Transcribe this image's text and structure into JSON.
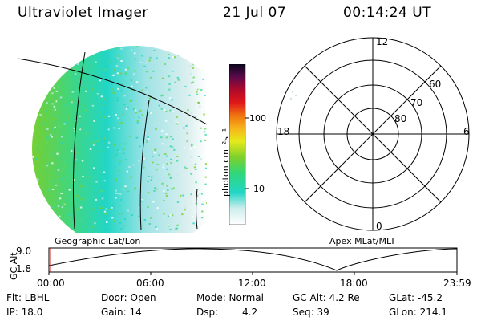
{
  "header": {
    "title": "Ultraviolet Imager",
    "date": "21 Jul 07",
    "time": "00:14:24 UT"
  },
  "colorbar": {
    "label": "photon cm⁻²s⁻¹",
    "ticks": [
      "100",
      "10"
    ]
  },
  "polar_plot": {
    "mlt_labels": [
      "12",
      "18",
      "6",
      "0"
    ],
    "lat_labels": [
      "60",
      "70",
      "80"
    ]
  },
  "projection_labels": {
    "left": "Geographic Lat/Lon",
    "right": "Apex MLat/MLT"
  },
  "altitude_plot": {
    "ylabel": "GC Alt",
    "yticks": [
      "9.0",
      "1.8"
    ],
    "xticks": [
      "00:00",
      "06:00",
      "12:00",
      "18:00",
      "23:59"
    ]
  },
  "status": {
    "filter": "Flt: LBHL",
    "ip": "IP: 18.0",
    "door": "Door: Open",
    "gain": "Gain: 14",
    "mode": "Mode: Normal",
    "dsp_label": "Dsp:",
    "dsp_value": "4.2",
    "gc_alt": "GC Alt: 4.2 Re",
    "seq": "Seq: 39",
    "glat": "GLat: -45.2",
    "glon": "GLon: 214.1"
  },
  "colors": {
    "intensity_high": "#7ecc2a",
    "intensity_mid": "#22d6c6",
    "intensity_low": "#d9efef"
  }
}
